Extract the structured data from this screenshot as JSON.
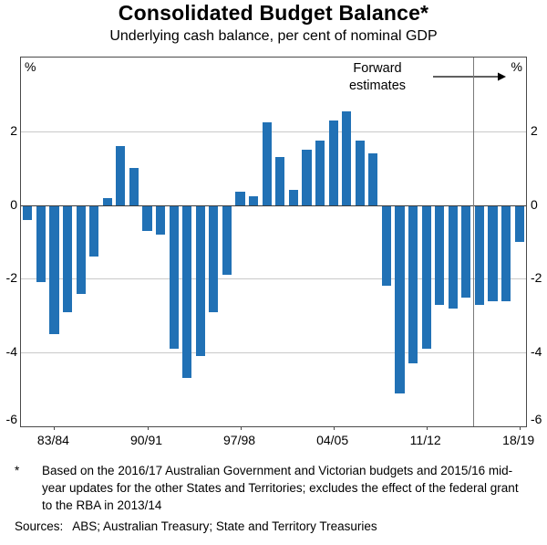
{
  "header": {
    "title": "Consolidated Budget Balance*",
    "subtitle": "Underlying cash balance, per cent of nominal GDP"
  },
  "chart_data": {
    "type": "bar",
    "title": "Consolidated Budget Balance*",
    "subtitle": "Underlying cash balance, per cent of nominal GDP",
    "unit_label": "%",
    "ylim": [
      -6,
      4
    ],
    "yticks": [
      2,
      0,
      -2,
      -4,
      -6
    ],
    "gridlines": [
      2,
      -2,
      -4
    ],
    "bar_color": "#2171b5",
    "categories": [
      "81/82",
      "82/83",
      "83/84",
      "84/85",
      "85/86",
      "86/87",
      "87/88",
      "88/89",
      "89/90",
      "90/91",
      "91/92",
      "92/93",
      "93/94",
      "94/95",
      "95/96",
      "96/97",
      "97/98",
      "98/99",
      "99/00",
      "00/01",
      "01/02",
      "02/03",
      "03/04",
      "04/05",
      "05/06",
      "06/07",
      "07/08",
      "08/09",
      "09/10",
      "10/11",
      "11/12",
      "12/13",
      "13/14",
      "14/15",
      "15/16",
      "16/17",
      "17/18",
      "18/19"
    ],
    "values": [
      -0.4,
      -2.1,
      -3.5,
      -2.9,
      -2.4,
      -1.4,
      0.2,
      1.6,
      1.0,
      -0.7,
      -0.8,
      -3.9,
      -4.7,
      -4.1,
      -2.9,
      -1.9,
      0.35,
      0.25,
      2.25,
      1.3,
      0.4,
      1.5,
      1.75,
      2.3,
      2.55,
      1.75,
      1.4,
      -2.2,
      -5.1,
      -4.3,
      -3.9,
      -2.7,
      -2.8,
      -2.5,
      -2.7,
      -2.6,
      -2.6,
      -1.0
    ],
    "xtick_labels": [
      "83/84",
      "90/91",
      "97/98",
      "04/05",
      "11/12",
      "18/19"
    ],
    "xtick_indices": [
      2,
      9,
      16,
      23,
      30,
      37
    ],
    "forward_line_index": 34,
    "annotation": {
      "line1": "Forward",
      "line2": "estimates"
    }
  },
  "footnote": {
    "marker": "*",
    "text": "Based on the 2016/17 Australian Government and Victorian budgets and 2015/16 mid-year updates for the other States and Territories; excludes the effect of the federal grant to the RBA in 2013/14"
  },
  "sources": {
    "label": "Sources:",
    "text": "ABS; Australian Treasury; State and Territory Treasuries"
  }
}
